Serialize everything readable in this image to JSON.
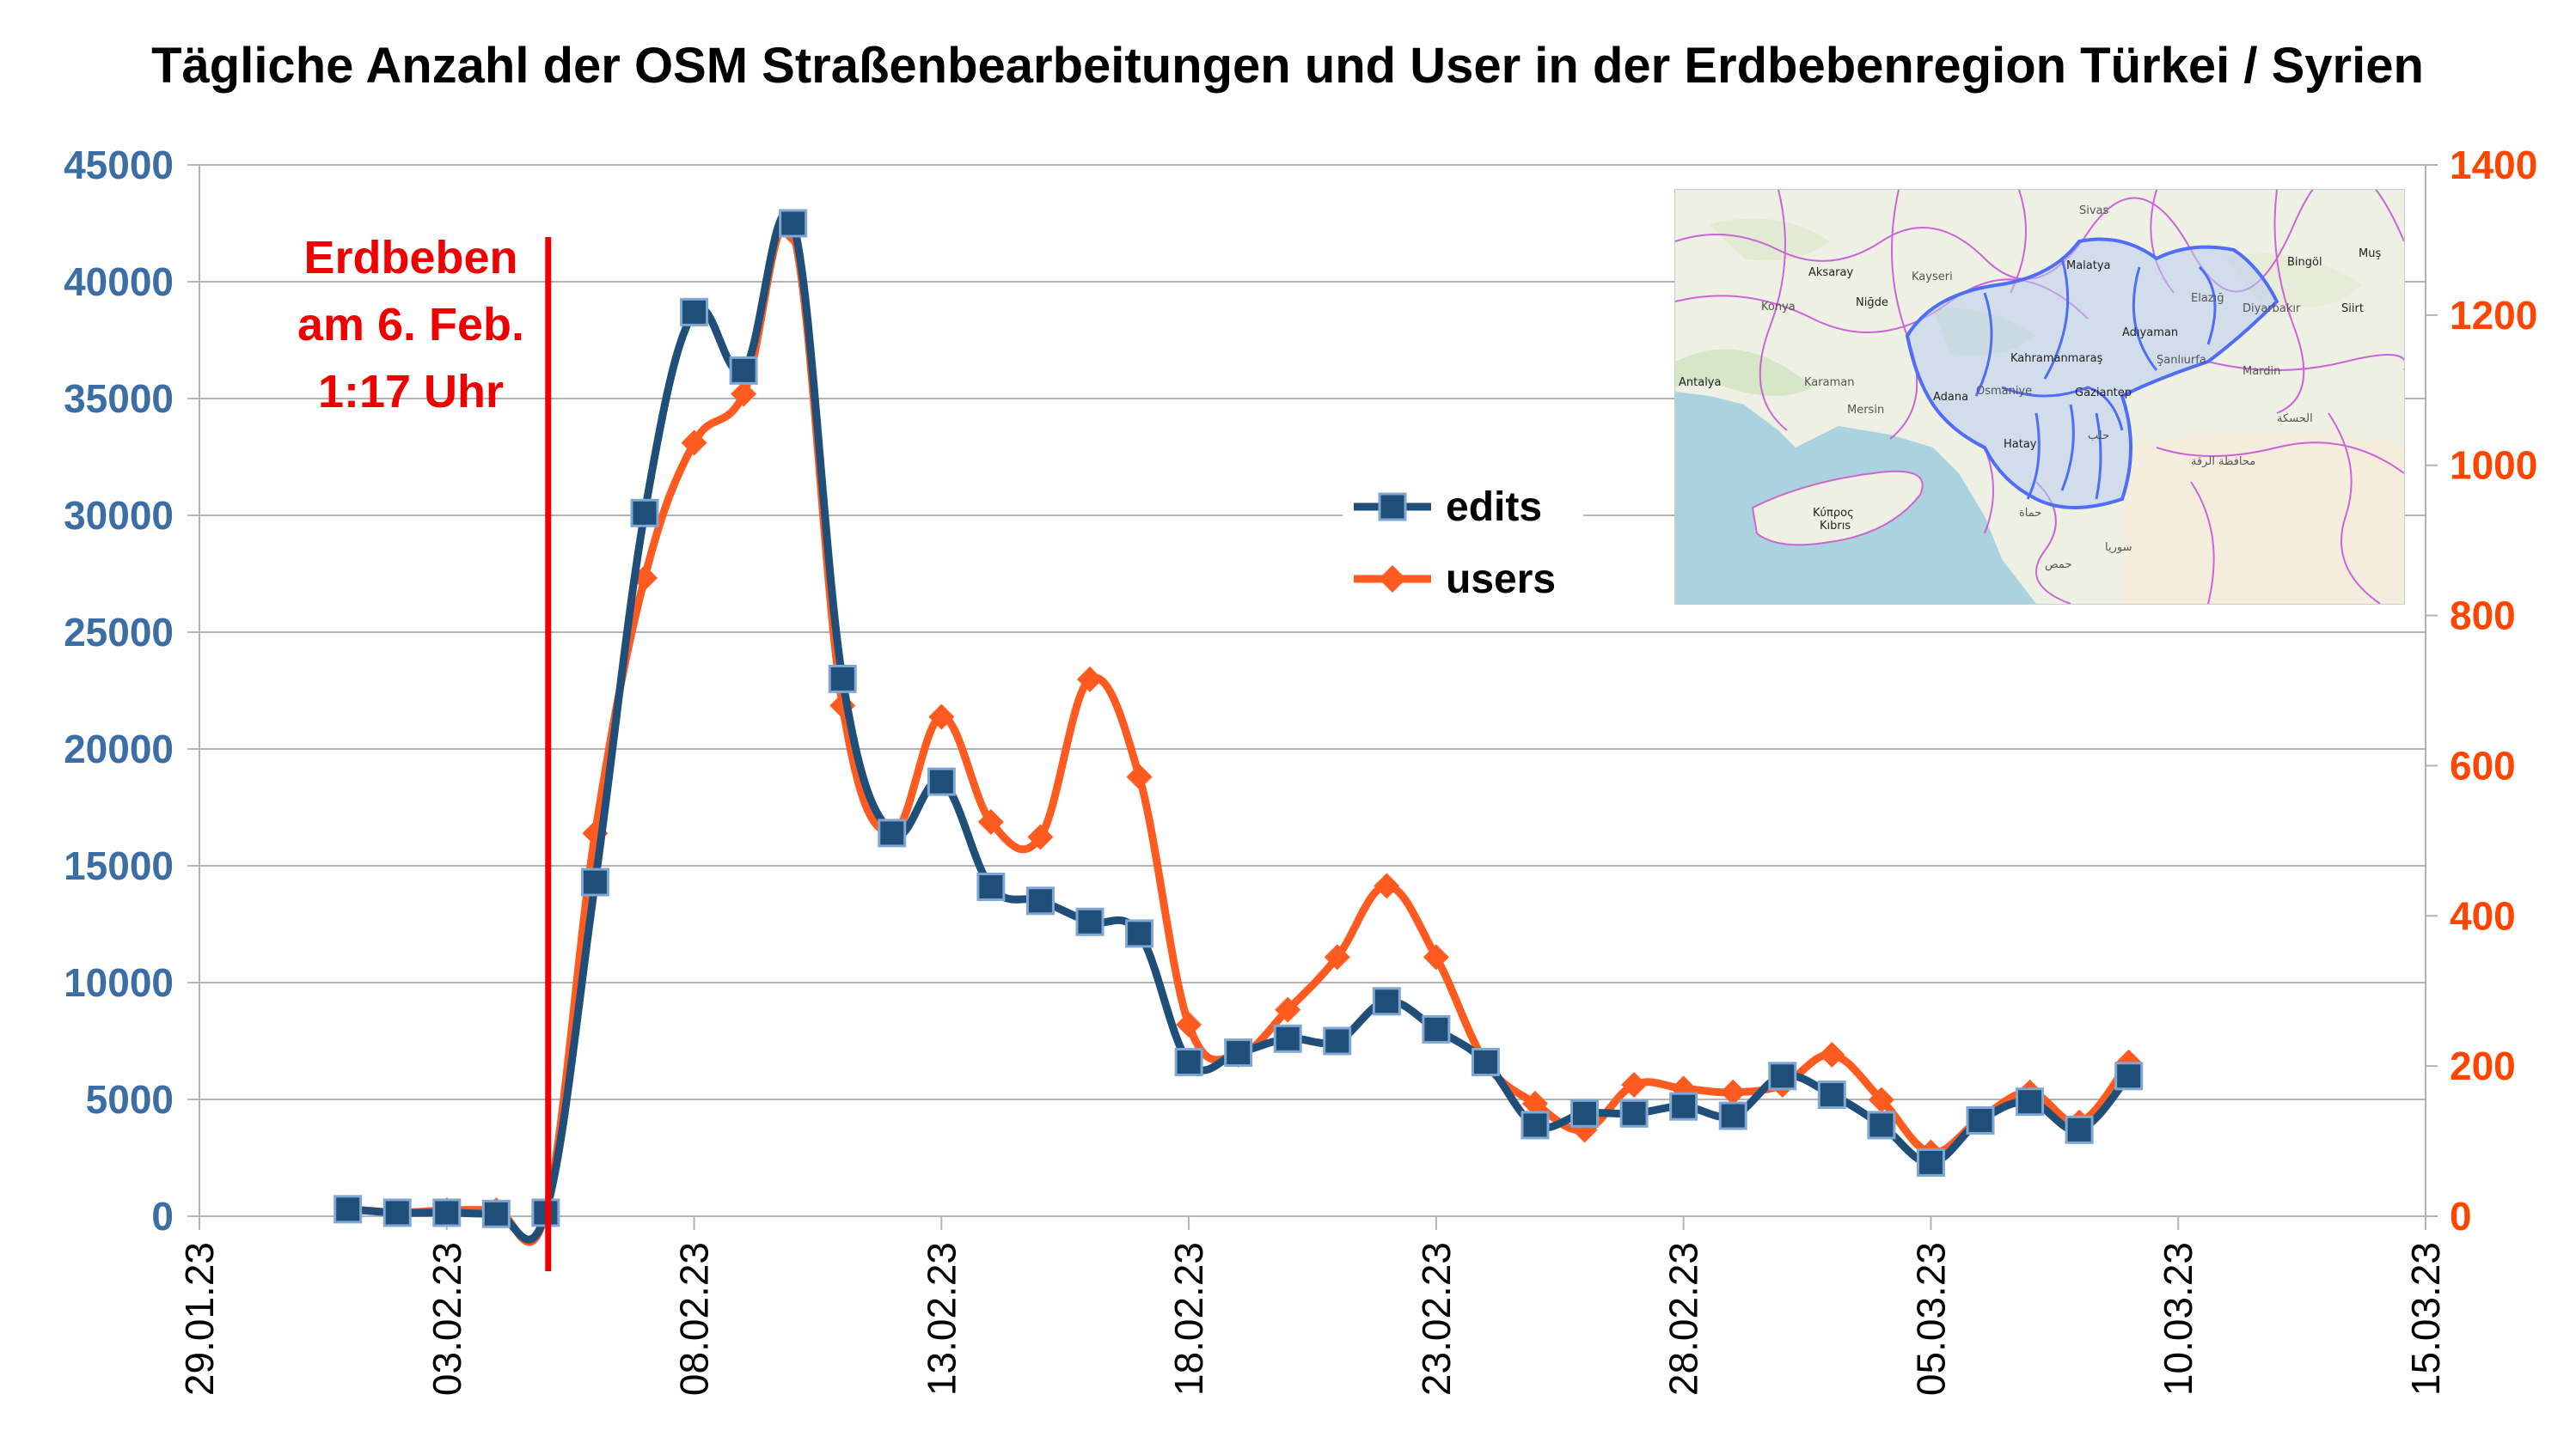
{
  "chart_data": {
    "type": "line",
    "title": "Tägliche Anzahl der OSM Straßenbearbeitungen und User in der Erdbebenregion Türkei / Syrien",
    "xlabel": "",
    "ylabel_left": "",
    "ylabel_right": "",
    "x_start_date": "29.01.23",
    "x_range_days": [
      0,
      45
    ],
    "x_tick_days": [
      0,
      5,
      10,
      15,
      20,
      25,
      30,
      35,
      40,
      45
    ],
    "x_tick_labels": [
      "29.01.23",
      "03.02.23",
      "08.02.23",
      "13.02.23",
      "18.02.23",
      "23.02.23",
      "28.02.23",
      "05.03.23",
      "10.03.23",
      "15.03.23"
    ],
    "y_left": {
      "range": [
        0,
        45000
      ],
      "ticks": [
        0,
        5000,
        10000,
        15000,
        20000,
        25000,
        30000,
        35000,
        40000,
        45000
      ],
      "tick_labels": [
        "0",
        "5000",
        "10000",
        "15000",
        "20000",
        "25000",
        "30000",
        "35000",
        "40000",
        "45000"
      ],
      "color": "#3b6ea5"
    },
    "y_right": {
      "range": [
        0,
        1400
      ],
      "ticks": [
        0,
        200,
        400,
        600,
        800,
        1000,
        1200,
        1400
      ],
      "tick_labels": [
        "0",
        "200",
        "400",
        "600",
        "800",
        "1000",
        "1200",
        "1400"
      ],
      "color": "#ff4500"
    },
    "grid": true,
    "legend_position": "center-right",
    "annotation": {
      "lines": [
        "Erdbeben",
        "am 6. Feb.",
        "1:17 Uhr"
      ],
      "day": 7.05,
      "color": "#ee0000"
    },
    "series": [
      {
        "name": "edits",
        "axis": "left",
        "color": "#1f4e79",
        "marker": "square",
        "x": [
          3,
          4,
          5,
          6,
          7,
          8,
          9,
          10,
          11,
          12,
          13,
          14,
          15,
          16,
          17,
          18,
          19,
          20,
          21,
          22,
          23,
          24,
          25,
          26,
          27,
          28,
          29,
          30,
          31,
          32,
          33,
          34,
          35,
          36,
          37,
          38,
          39,
          40
        ],
        "values": [
          300,
          150,
          150,
          100,
          150,
          14300,
          30100,
          38700,
          36200,
          42500,
          23000,
          16400,
          18600,
          14100,
          13500,
          12600,
          12100,
          6600,
          7000,
          7600,
          7500,
          9200,
          8000,
          6600,
          3900,
          4400,
          4400,
          4700,
          4300,
          6000,
          5200,
          3900,
          2300,
          4100,
          4900,
          3700,
          6000,
          null
        ]
      },
      {
        "name": "users",
        "axis": "right",
        "color": "#ff5a1f",
        "marker": "diamond",
        "x": [
          3,
          4,
          5,
          6,
          7,
          8,
          9,
          10,
          11,
          12,
          13,
          14,
          15,
          16,
          17,
          18,
          19,
          20,
          21,
          22,
          23,
          24,
          25,
          26,
          27,
          28,
          29,
          30,
          31,
          32,
          33,
          34,
          35,
          36,
          37,
          38,
          39,
          40
        ],
        "values": [
          10,
          5,
          8,
          8,
          5,
          510,
          850,
          1030,
          1095,
          1310,
          680,
          510,
          665,
          525,
          505,
          715,
          585,
          255,
          215,
          275,
          345,
          440,
          345,
          205,
          150,
          115,
          175,
          170,
          165,
          175,
          215,
          155,
          85,
          130,
          165,
          125,
          205,
          null
        ]
      }
    ],
    "inset_map": {
      "place_labels": [
        "Sivas",
        "Malatya",
        "Muş",
        "Bingöl",
        "Aksaray",
        "Niğde",
        "Kayseri",
        "Konya",
        "Elazığ",
        "Diyarbakır",
        "Siirt",
        "Adıyaman",
        "Kahramanmaraş",
        "Mardin",
        "Şanlıurfa",
        "Gaziantep",
        "Adana",
        "Mersin",
        "Antalya",
        "Karaman",
        "Osmaniye",
        "Hatay",
        "Kıbrıs",
        "Κύπρος",
        "سوريا",
        "حلب",
        "حماة",
        "حمص",
        "محافظة الرقة",
        "الحسكة"
      ]
    }
  }
}
